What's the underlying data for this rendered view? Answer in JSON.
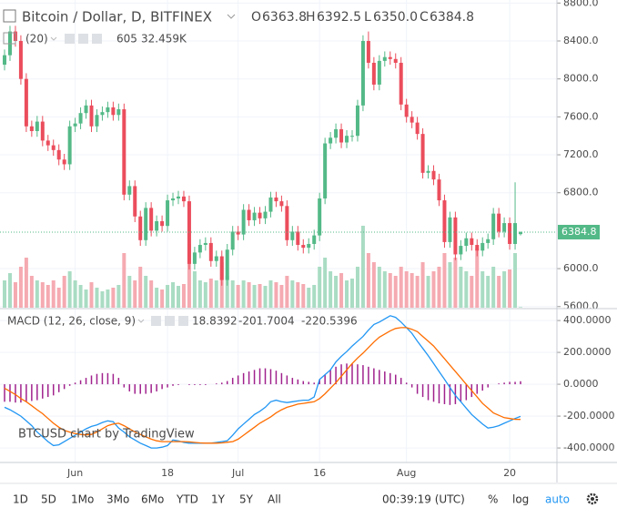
{
  "chart_data": [
    {
      "type": "candlestick",
      "legend": {
        "symbol": "Bitcoin / Dollar, D, BITFINEX",
        "ohlc": [
          {
            "key": "O",
            "value": "6363.8"
          },
          {
            "key": "H",
            "value": "6392.5"
          },
          {
            "key": "L",
            "value": "6350.0"
          },
          {
            "key": "C",
            "value": "6384.8"
          }
        ],
        "volume_params": "(20)",
        "volume": "605",
        "volume_ma": "32.459K"
      },
      "watermark": "BTCUSD chart by TradingView",
      "last_price_label": "6384.8",
      "up_color": "#53b987",
      "down_color": "#eb4d5c",
      "up_volume_color": "#a9dcc3",
      "down_volume_color": "#f5aab1",
      "grid": true,
      "xlim": [
        -0.84,
        101.7
      ],
      "xticks": [
        {
          "value": 13,
          "label": "Jun"
        },
        {
          "value": 30,
          "label": "18"
        },
        {
          "value": 43,
          "label": "Jul"
        },
        {
          "value": 58,
          "label": "16"
        },
        {
          "value": 74,
          "label": "Aug"
        },
        {
          "value": 93,
          "label": "20"
        }
      ],
      "ylim": [
        5588,
        8832
      ],
      "yticks": [
        {
          "value": 8800,
          "label": "8800.0"
        },
        {
          "value": 8400,
          "label": "8400.0"
        },
        {
          "value": 8000,
          "label": "8000.0"
        },
        {
          "value": 7600,
          "label": "7600.0"
        },
        {
          "value": 7200,
          "label": "7200.0"
        },
        {
          "value": 6800,
          "label": "6800.0"
        },
        {
          "value": 6000,
          "label": "6000.0"
        },
        {
          "value": 5600,
          "label": "5600.0"
        }
      ],
      "open": [
        8150,
        8250,
        8500,
        8400,
        8000,
        7500,
        7450,
        7550,
        7350,
        7300,
        7250,
        7150,
        7100,
        7500,
        7530,
        7640,
        7720,
        7500,
        7620,
        7650,
        7700,
        7620,
        7680,
        6780,
        6870,
        6550,
        6300,
        6640,
        6400,
        6500,
        6450,
        6720,
        6740,
        6760,
        6710,
        6050,
        6170,
        6250,
        6270,
        6080,
        6130,
        5880,
        6200,
        6390,
        6360,
        6620,
        6510,
        6590,
        6530,
        6600,
        6750,
        6710,
        6660,
        6300,
        6390,
        6250,
        6220,
        6260,
        6350,
        6740,
        7320,
        7380,
        7470,
        7330,
        7400,
        7400,
        7720,
        8400,
        8170,
        7940,
        8190,
        8230,
        8210,
        8170,
        7730,
        7600,
        7540,
        7420,
        7010,
        7030,
        6940,
        6720,
        6280,
        6540,
        6150,
        6240,
        6320,
        6250,
        6190,
        6270,
        6310,
        6580,
        6390,
        6480,
        6260,
        6363.8
      ],
      "high": [
        8310,
        8560,
        8560,
        8460,
        8060,
        7560,
        7610,
        7610,
        7410,
        7360,
        7310,
        7210,
        7560,
        7590,
        7700,
        7780,
        7780,
        7680,
        7710,
        7760,
        7760,
        7740,
        7740,
        6930,
        6930,
        6610,
        6700,
        6700,
        6560,
        6560,
        6780,
        6800,
        6820,
        6820,
        6770,
        6230,
        6310,
        6330,
        6330,
        6190,
        6190,
        6260,
        6450,
        6450,
        6680,
        6680,
        6650,
        6650,
        6660,
        6810,
        6810,
        6770,
        6720,
        6450,
        6450,
        6310,
        6320,
        6410,
        6800,
        7380,
        7440,
        7530,
        7530,
        7460,
        7460,
        7780,
        8460,
        8500,
        8230,
        8250,
        8290,
        8290,
        8270,
        8230,
        7790,
        7660,
        7600,
        7480,
        7090,
        7090,
        7000,
        6780,
        6600,
        6600,
        6300,
        6380,
        6380,
        6310,
        6330,
        6370,
        6640,
        6640,
        6540,
        6540,
        6910,
        6392.5
      ],
      "low": [
        8090,
        8190,
        8340,
        7940,
        7440,
        7390,
        7390,
        7290,
        7240,
        7190,
        7090,
        7040,
        7040,
        7440,
        7470,
        7580,
        7440,
        7440,
        7560,
        7590,
        7560,
        7560,
        6720,
        6720,
        6490,
        6240,
        6240,
        6340,
        6340,
        6390,
        6390,
        6660,
        6680,
        6650,
        5990,
        5990,
        6110,
        6190,
        6020,
        6020,
        5820,
        5820,
        6140,
        6300,
        6300,
        6450,
        6450,
        6470,
        6470,
        6540,
        6650,
        6600,
        6240,
        6240,
        6190,
        6160,
        6160,
        6200,
        6290,
        6680,
        7260,
        7320,
        7270,
        7270,
        7340,
        7340,
        7660,
        8110,
        7880,
        7880,
        8130,
        8150,
        8110,
        7670,
        7540,
        7480,
        7360,
        6950,
        6950,
        6880,
        6660,
        6220,
        6220,
        6090,
        6090,
        6180,
        6190,
        6130,
        6130,
        6210,
        6250,
        6330,
        6330,
        6200,
        6200,
        6350
      ],
      "close": [
        8250,
        8500,
        8400,
        8000,
        7500,
        7450,
        7550,
        7350,
        7300,
        7250,
        7150,
        7100,
        7500,
        7530,
        7640,
        7720,
        7500,
        7620,
        7650,
        7700,
        7620,
        7680,
        6780,
        6870,
        6550,
        6300,
        6640,
        6400,
        6500,
        6450,
        6720,
        6740,
        6760,
        6710,
        6050,
        6170,
        6250,
        6270,
        6080,
        6130,
        5880,
        6200,
        6390,
        6360,
        6620,
        6510,
        6590,
        6530,
        6600,
        6750,
        6710,
        6660,
        6300,
        6390,
        6250,
        6220,
        6260,
        6350,
        6740,
        7320,
        7380,
        7470,
        7330,
        7400,
        7400,
        7720,
        8400,
        8170,
        7940,
        8190,
        8230,
        8210,
        8170,
        7730,
        7600,
        7540,
        7420,
        7010,
        7030,
        6940,
        6720,
        6280,
        6540,
        6150,
        6240,
        6320,
        6250,
        6190,
        6270,
        6310,
        6580,
        6390,
        6480,
        6260,
        6480,
        6384.8
      ],
      "volume": [
        30000,
        38000,
        28000,
        45000,
        55000,
        35000,
        30000,
        28000,
        25000,
        30000,
        22000,
        35000,
        40000,
        30000,
        25000,
        20000,
        28000,
        22000,
        18000,
        20000,
        22000,
        25000,
        60000,
        35000,
        30000,
        45000,
        35000,
        30000,
        22000,
        20000,
        25000,
        28000,
        24000,
        26000,
        70000,
        40000,
        30000,
        28000,
        32000,
        30000,
        50000,
        35000,
        30000,
        25000,
        30000,
        28000,
        25000,
        26000,
        24000,
        30000,
        28000,
        25000,
        35000,
        30000,
        28000,
        26000,
        22000,
        25000,
        45000,
        55000,
        40000,
        35000,
        38000,
        30000,
        32000,
        45000,
        90000,
        60000,
        50000,
        45000,
        40000,
        38000,
        35000,
        45000,
        40000,
        38000,
        35000,
        50000,
        35000,
        40000,
        45000,
        60000,
        50000,
        55000,
        45000,
        40000,
        35000,
        65000,
        40000,
        35000,
        45000,
        35000,
        40000,
        42000,
        60000,
        605
      ]
    },
    {
      "type": "macd",
      "legend": {
        "title": "MACD (12, 26, close, 9)",
        "values": [
          "18.8392",
          "-201.7004",
          "-220.5396"
        ]
      },
      "ylim": [
        -491,
        469
      ],
      "yticks": [
        {
          "value": 400,
          "label": "400.0000"
        },
        {
          "value": 200,
          "label": "200.0000"
        },
        {
          "value": 0,
          "label": "0.0000"
        },
        {
          "value": -200,
          "label": "-200.0000"
        },
        {
          "value": -400,
          "label": "-400.0000"
        }
      ],
      "series": [
        {
          "style": "histogram",
          "color": "#a0228d",
          "values": [
            -110,
            -110,
            -115,
            -115,
            -110,
            -105,
            -100,
            -90,
            -80,
            -70,
            -50,
            -30,
            -10,
            10,
            25,
            40,
            55,
            65,
            70,
            70,
            65,
            40,
            -20,
            -45,
            -60,
            -60,
            -60,
            -55,
            -45,
            -30,
            -20,
            -10,
            -5,
            0,
            -5,
            -5,
            -5,
            -5,
            0,
            5,
            10,
            20,
            40,
            55,
            70,
            80,
            90,
            100,
            100,
            95,
            85,
            70,
            55,
            40,
            30,
            20,
            15,
            10,
            30,
            60,
            90,
            110,
            125,
            130,
            130,
            125,
            120,
            110,
            100,
            90,
            80,
            70,
            60,
            40,
            10,
            -20,
            -60,
            -80,
            -100,
            -110,
            -120,
            -125,
            -130,
            -125,
            -110,
            -100,
            -80,
            -60,
            -40,
            -20,
            0,
            5,
            10,
            15,
            15,
            18.8392
          ]
        },
        {
          "style": "line",
          "color": "#2196f3",
          "values": [
            -145,
            -160,
            -180,
            -200,
            -230,
            -260,
            -300,
            -330,
            -360,
            -385,
            -380,
            -360,
            -340,
            -320,
            -300,
            -280,
            -265,
            -255,
            -240,
            -230,
            -235,
            -275,
            -300,
            -330,
            -350,
            -370,
            -385,
            -400,
            -400,
            -395,
            -385,
            -350,
            -355,
            -365,
            -370,
            -370,
            -370,
            -370,
            -370,
            -365,
            -360,
            -355,
            -320,
            -280,
            -250,
            -220,
            -190,
            -170,
            -145,
            -110,
            -100,
            -110,
            -115,
            -110,
            -105,
            -100,
            -100,
            -80,
            30,
            60,
            90,
            140,
            175,
            205,
            240,
            270,
            300,
            340,
            375,
            390,
            410,
            430,
            420,
            390,
            355,
            320,
            270,
            225,
            180,
            130,
            80,
            30,
            -20,
            -70,
            -110,
            -150,
            -190,
            -220,
            -250,
            -275,
            -270,
            -260,
            -245,
            -230,
            -215,
            -201.7004
          ]
        },
        {
          "style": "line",
          "color": "#ff6d00",
          "values": [
            -25,
            -45,
            -65,
            -90,
            -110,
            -135,
            -160,
            -185,
            -215,
            -245,
            -270,
            -290,
            -300,
            -310,
            -315,
            -318,
            -315,
            -300,
            -280,
            -260,
            -250,
            -245,
            -260,
            -280,
            -300,
            -315,
            -330,
            -345,
            -355,
            -360,
            -360,
            -360,
            -360,
            -360,
            -362,
            -365,
            -368,
            -370,
            -370,
            -370,
            -368,
            -364,
            -360,
            -345,
            -320,
            -295,
            -270,
            -245,
            -225,
            -205,
            -180,
            -160,
            -145,
            -135,
            -125,
            -120,
            -115,
            -110,
            -90,
            -60,
            -25,
            10,
            50,
            90,
            130,
            165,
            195,
            230,
            265,
            295,
            315,
            335,
            350,
            355,
            355,
            345,
            330,
            300,
            270,
            240,
            200,
            160,
            120,
            80,
            40,
            0,
            -40,
            -80,
            -120,
            -150,
            -180,
            -195,
            -210,
            -215,
            -220,
            -220.5396
          ]
        }
      ]
    }
  ],
  "toolbar": {
    "ranges": [
      "1D",
      "5D",
      "1Mo",
      "3Mo",
      "6Mo",
      "YTD",
      "1Y",
      "5Y",
      "All"
    ],
    "clock": "00:39:19 (UTC)",
    "percent": "%",
    "log": "log",
    "auto": "auto"
  }
}
